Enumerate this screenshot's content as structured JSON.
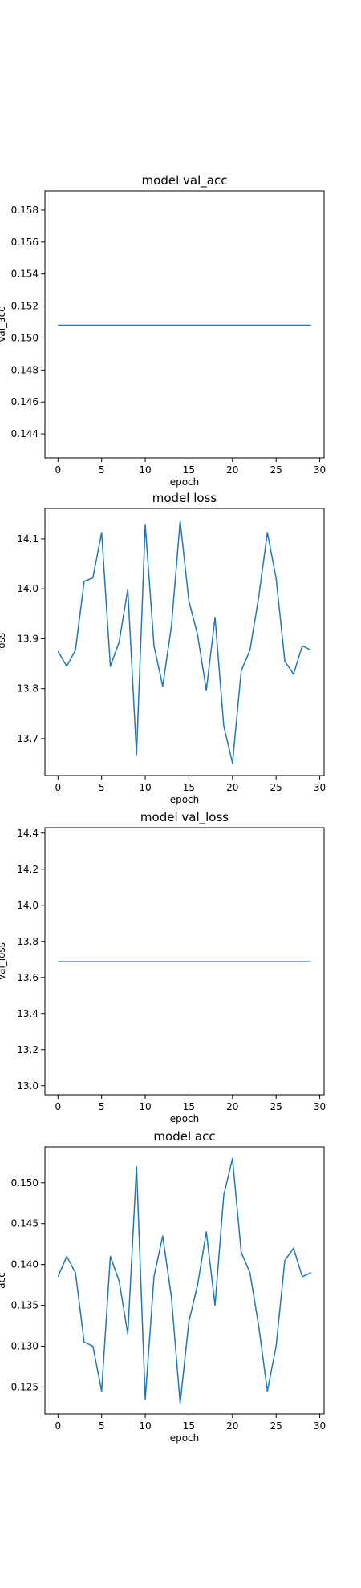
{
  "chart_data": [
    {
      "type": "line",
      "title": "model val_acc",
      "xlabel": "epoch",
      "ylabel": "val_acc",
      "xlim": [
        -1.5,
        30.5
      ],
      "ylim": [
        0.1425,
        0.1592
      ],
      "xticks": [
        0,
        5,
        10,
        15,
        20,
        25,
        30
      ],
      "yticks": [
        0.144,
        0.146,
        0.148,
        0.15,
        0.152,
        0.154,
        0.156,
        0.158
      ],
      "ytick_labels": [
        "0.144",
        "0.146",
        "0.148",
        "0.150",
        "0.152",
        "0.154",
        "0.156",
        "0.158"
      ],
      "grid": false,
      "color": "#1f77b4",
      "x": [
        0,
        1,
        2,
        3,
        4,
        5,
        6,
        7,
        8,
        9,
        10,
        11,
        12,
        13,
        14,
        15,
        16,
        17,
        18,
        19,
        20,
        21,
        22,
        23,
        24,
        25,
        26,
        27,
        28,
        29
      ],
      "values": [
        0.1508,
        0.1508,
        0.1508,
        0.1508,
        0.1508,
        0.1508,
        0.1508,
        0.1508,
        0.1508,
        0.1508,
        0.1508,
        0.1508,
        0.1508,
        0.1508,
        0.1508,
        0.1508,
        0.1508,
        0.1508,
        0.1508,
        0.1508,
        0.1508,
        0.1508,
        0.1508,
        0.1508,
        0.1508,
        0.1508,
        0.1508,
        0.1508,
        0.1508,
        0.1508
      ]
    },
    {
      "type": "line",
      "title": "model loss",
      "xlabel": "epoch",
      "ylabel": "loss",
      "xlim": [
        -1.5,
        30.5
      ],
      "ylim": [
        13.626,
        14.161
      ],
      "xticks": [
        0,
        5,
        10,
        15,
        20,
        25,
        30
      ],
      "yticks": [
        13.7,
        13.8,
        13.9,
        14.0,
        14.1
      ],
      "ytick_labels": [
        "13.7",
        "13.8",
        "13.9",
        "14.0",
        "14.1"
      ],
      "grid": false,
      "color": "#1f77b4",
      "x": [
        0,
        1,
        2,
        3,
        4,
        5,
        6,
        7,
        8,
        9,
        10,
        11,
        12,
        13,
        14,
        15,
        16,
        17,
        18,
        19,
        20,
        21,
        22,
        23,
        24,
        25,
        26,
        27,
        28,
        29
      ],
      "values": [
        13.875,
        13.845,
        13.877,
        14.015,
        14.022,
        14.113,
        13.845,
        13.893,
        13.999,
        13.668,
        14.129,
        13.886,
        13.805,
        13.925,
        14.136,
        13.976,
        13.908,
        13.797,
        13.943,
        13.725,
        13.651,
        13.836,
        13.877,
        13.983,
        14.113,
        14.021,
        13.855,
        13.829,
        13.886,
        13.877
      ]
    },
    {
      "type": "line",
      "title": "model val_loss",
      "xlabel": "epoch",
      "ylabel": "val_loss",
      "xlim": [
        -1.5,
        30.5
      ],
      "ylim": [
        12.95,
        14.43
      ],
      "xticks": [
        0,
        5,
        10,
        15,
        20,
        25,
        30
      ],
      "yticks": [
        13.0,
        13.2,
        13.4,
        13.6,
        13.8,
        14.0,
        14.2,
        14.4
      ],
      "ytick_labels": [
        "13.0",
        "13.2",
        "13.4",
        "13.6",
        "13.8",
        "14.0",
        "14.2",
        "14.4"
      ],
      "grid": false,
      "color": "#1f77b4",
      "x": [
        0,
        1,
        2,
        3,
        4,
        5,
        6,
        7,
        8,
        9,
        10,
        11,
        12,
        13,
        14,
        15,
        16,
        17,
        18,
        19,
        20,
        21,
        22,
        23,
        24,
        25,
        26,
        27,
        28,
        29
      ],
      "values": [
        13.687,
        13.687,
        13.687,
        13.687,
        13.687,
        13.687,
        13.687,
        13.687,
        13.687,
        13.687,
        13.687,
        13.687,
        13.687,
        13.687,
        13.687,
        13.687,
        13.687,
        13.687,
        13.687,
        13.687,
        13.687,
        13.687,
        13.687,
        13.687,
        13.687,
        13.687,
        13.687,
        13.687,
        13.687,
        13.687
      ]
    },
    {
      "type": "line",
      "title": "model acc",
      "xlabel": "epoch",
      "ylabel": "acc",
      "xlim": [
        -1.5,
        30.5
      ],
      "ylim": [
        0.1217,
        0.1544
      ],
      "xticks": [
        0,
        5,
        10,
        15,
        20,
        25,
        30
      ],
      "yticks": [
        0.125,
        0.13,
        0.135,
        0.14,
        0.145,
        0.15
      ],
      "ytick_labels": [
        "0.125",
        "0.130",
        "0.135",
        "0.140",
        "0.145",
        "0.150"
      ],
      "grid": false,
      "color": "#1f77b4",
      "x": [
        0,
        1,
        2,
        3,
        4,
        5,
        6,
        7,
        8,
        9,
        10,
        11,
        12,
        13,
        14,
        15,
        16,
        17,
        18,
        19,
        20,
        21,
        22,
        23,
        24,
        25,
        26,
        27,
        28,
        29
      ],
      "values": [
        0.1385,
        0.141,
        0.139,
        0.1305,
        0.13,
        0.1245,
        0.141,
        0.138,
        0.1315,
        0.152,
        0.1235,
        0.1385,
        0.1435,
        0.136,
        0.123,
        0.133,
        0.1375,
        0.144,
        0.135,
        0.1485,
        0.153,
        0.1415,
        0.139,
        0.1325,
        0.1245,
        0.13,
        0.1405,
        0.142,
        0.1385,
        0.139
      ]
    }
  ]
}
